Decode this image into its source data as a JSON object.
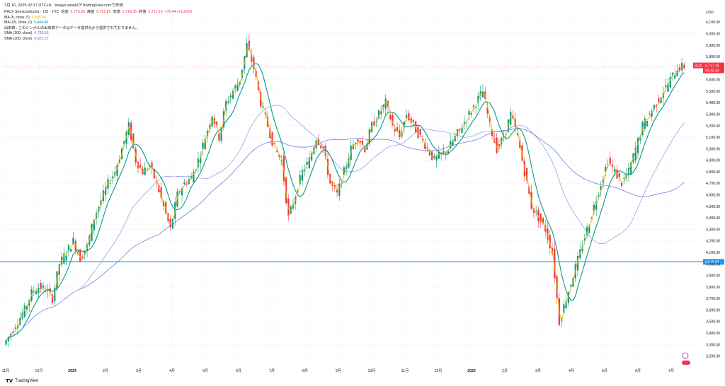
{
  "header": {
    "timestamp": "7月 16, 2025 02:17 UTC+9、tosayo-tanukiがTradingView.comで作成",
    "symbol": "PHLX Semiconductor · 1日 · TVC",
    "open_label": "始値",
    "open_value": "5,778.03",
    "high_label": "高値",
    "high_value": "5,791.81",
    "low_label": "安値",
    "low_value": "5,714.35",
    "close_label": "終値",
    "close_value": "5,717.16",
    "change": "+70.44 (+1.25%)"
  },
  "indicators": [
    {
      "label": "MA (5, close, 0)",
      "value": "5,686.85",
      "color": "#e6b800"
    },
    {
      "label": "MA (25, close, 0)",
      "value": "5,444.86",
      "color": "#089981"
    },
    {
      "label": "出来高 : このシンボルの出来高データはデータ提供元から提供されておりません。",
      "value": "",
      "color": "#131722"
    },
    {
      "label": "SMA (100, close)",
      "value": "4,735.55",
      "color": "#5b6fd6"
    },
    {
      "label": "SMA (200, close)",
      "value": "4,922.27",
      "color": "#5b6fd6"
    }
  ],
  "footer": {
    "brand": "TradingView"
  },
  "price_labels": {
    "current_sym": "SOX",
    "current_price": "5,717.16",
    "countdown": "09:42:43",
    "hline_price": "4,018.00"
  },
  "chart_data": {
    "type": "candlestick",
    "currency_label": "USD",
    "y_ticks": [
      3200,
      3300,
      3400,
      3500,
      3600,
      3700,
      3800,
      3900,
      4000,
      4100,
      4200,
      4300,
      4400,
      4500,
      4600,
      4700,
      4800,
      4900,
      5000,
      5100,
      5200,
      5300,
      5400,
      5500,
      5600,
      5700,
      5800,
      5900,
      6000,
      6100
    ],
    "y_tick_labels": [
      "3,200.00",
      "3,300.00",
      "3,400.00",
      "3,500.00",
      "3,600.00",
      "3,700.00",
      "3,800.00",
      "3,900.00",
      "4,000.00",
      "4,100.00",
      "4,200.00",
      "4,300.00",
      "4,400.00",
      "4,500.00",
      "4,600.00",
      "4,700.00",
      "4,800.00",
      "4,900.00",
      "5,000.00",
      "5,100.00",
      "5,200.00",
      "5,300.00",
      "5,400.00",
      "5,500.00",
      "5,600.00",
      "5,700.00",
      "5,800.00",
      "5,900.00",
      "6,000.00",
      "6,100.00"
    ],
    "ylim": [
      3130,
      6230
    ],
    "x_ticks": [
      "11月",
      "12月",
      "2024",
      "2月",
      "3月",
      "4月",
      "5月",
      "6月",
      "7月",
      "8月",
      "9月",
      "10月",
      "11月",
      "12月",
      "2025",
      "2月",
      "3月",
      "4月",
      "5月",
      "6月",
      "7月"
    ],
    "horizontal_line": 4018,
    "last_price": 5717.16,
    "series": [
      {
        "name": "price",
        "points": [
          3300,
          3400,
          3500,
          3600,
          3750,
          3800,
          3780,
          3700,
          4000,
          4100,
          4200,
          4050,
          4150,
          4400,
          4550,
          4700,
          4800,
          5000,
          5200,
          4900,
          4800,
          4850,
          4700,
          4500,
          4300,
          4600,
          4700,
          4750,
          4900,
          5100,
          5300,
          5100,
          5400,
          5500,
          5600,
          5900,
          5700,
          5400,
          5200,
          5000,
          4900,
          4400,
          4600,
          4800,
          4900,
          5100,
          5000,
          4700,
          4600,
          4800,
          5000,
          5100,
          5000,
          5200,
          5300,
          5400,
          5200,
          5100,
          5300,
          5200,
          5100,
          5000,
          4900,
          4950,
          5000,
          5100,
          5200,
          5300,
          5400,
          5500,
          5200,
          5000,
          5100,
          5300,
          5100,
          4800,
          4500,
          4400,
          4300,
          4100,
          3500,
          3700,
          3900,
          4100,
          4300,
          4500,
          4700,
          4900,
          4800,
          4700,
          4800,
          5000,
          5200,
          5300,
          5400,
          5500,
          5600,
          5700,
          5717
        ]
      },
      {
        "name": "MA (5, close, 0)",
        "color": "#e6b800"
      },
      {
        "name": "MA (25, close, 0)",
        "color": "#089981"
      },
      {
        "name": "SMA (100, close)",
        "color": "#5b6fd6"
      },
      {
        "name": "SMA (200, close)",
        "color": "#5b6fd6"
      }
    ]
  }
}
